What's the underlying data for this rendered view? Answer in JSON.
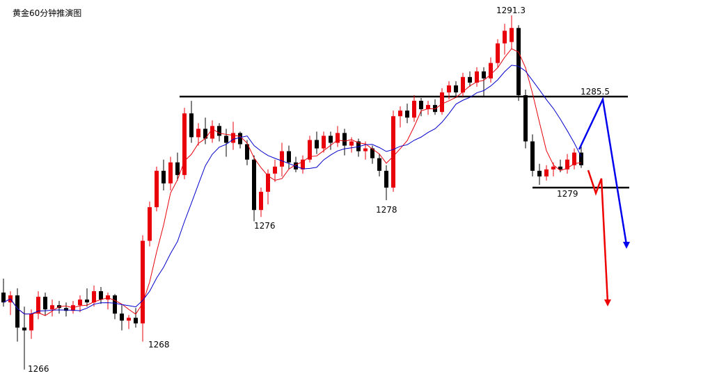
{
  "chart_data": {
    "type": "candlestick",
    "title": "黄金60分钟推演图",
    "ylim": [
      1265.4,
      1292.4
    ],
    "up_color": "#e8000b",
    "down_color": "#000000",
    "ma_colors": [
      "#e8000b",
      "#0000cc"
    ],
    "annotations": [
      1291.3,
      1285.5,
      1279,
      1278,
      1276,
      1268,
      1266
    ],
    "candles": [
      [
        1271.5,
        1272.5,
        1270.5,
        1270.8
      ],
      [
        1270.8,
        1271.6,
        1269.9,
        1271.3
      ],
      [
        1271.3,
        1271.8,
        1268,
        1269
      ],
      [
        1269,
        1270.5,
        1266,
        1268.8
      ],
      [
        1268.8,
        1270.3,
        1268.2,
        1270
      ],
      [
        1270,
        1271.6,
        1269.6,
        1271.2
      ],
      [
        1271.2,
        1271.5,
        1269.9,
        1270.3
      ],
      [
        1270.3,
        1271,
        1269.8,
        1270.6
      ],
      [
        1270.6,
        1270.9,
        1270,
        1270.4
      ],
      [
        1270.4,
        1270.8,
        1269.8,
        1270.2
      ],
      [
        1270.2,
        1270.9,
        1270,
        1270.6
      ],
      [
        1270.6,
        1271.3,
        1270.1,
        1271
      ],
      [
        1271,
        1271.8,
        1270.5,
        1270.8
      ],
      [
        1270.8,
        1272,
        1270.5,
        1271.6
      ],
      [
        1271.6,
        1271.9,
        1270.7,
        1271
      ],
      [
        1271,
        1271.5,
        1270.3,
        1271.3
      ],
      [
        1271.3,
        1271.4,
        1269.6,
        1270
      ],
      [
        1270,
        1270.6,
        1268.8,
        1269.5
      ],
      [
        1269.5,
        1269.9,
        1268.9,
        1269.7
      ],
      [
        1269.7,
        1270.4,
        1269,
        1269.3
      ],
      [
        1269.3,
        1275.6,
        1268,
        1275.2
      ],
      [
        1275.2,
        1278,
        1274.8,
        1277.6
      ],
      [
        1277.6,
        1280.5,
        1277.3,
        1280.2
      ],
      [
        1280.2,
        1281,
        1278.8,
        1279.3
      ],
      [
        1279.3,
        1281.2,
        1278.8,
        1280.8
      ],
      [
        1280.8,
        1281.5,
        1279.5,
        1279.9
      ],
      [
        1279.9,
        1284.7,
        1279.6,
        1284.3
      ],
      [
        1284.3,
        1285.2,
        1282.2,
        1282.6
      ],
      [
        1282.6,
        1283.6,
        1282,
        1283.2
      ],
      [
        1283.2,
        1284,
        1282.1,
        1282.5
      ],
      [
        1282.5,
        1283.8,
        1282.2,
        1283.4
      ],
      [
        1283.4,
        1283.6,
        1282.3,
        1282.7
      ],
      [
        1282.7,
        1283.2,
        1281.2,
        1282.2
      ],
      [
        1282.2,
        1283.7,
        1281.7,
        1282.9
      ],
      [
        1282.9,
        1283,
        1281.8,
        1282.1
      ],
      [
        1282.1,
        1282.4,
        1280.6,
        1281
      ],
      [
        1281,
        1281.3,
        1276.6,
        1277.4
      ],
      [
        1277.4,
        1279,
        1276.9,
        1278.7
      ],
      [
        1278.7,
        1280.3,
        1277.8,
        1280
      ],
      [
        1280,
        1281,
        1279.4,
        1280.5
      ],
      [
        1280.5,
        1282.2,
        1279.8,
        1281.6
      ],
      [
        1281.6,
        1282,
        1280.3,
        1280.8
      ],
      [
        1280.8,
        1281.2,
        1280.1,
        1280.3
      ],
      [
        1280.3,
        1281.3,
        1280,
        1281
      ],
      [
        1281,
        1282.7,
        1280.8,
        1282.4
      ],
      [
        1282.4,
        1283,
        1281.4,
        1281.8
      ],
      [
        1281.8,
        1283,
        1281.5,
        1282.7
      ],
      [
        1282.7,
        1283,
        1281.7,
        1282.2
      ],
      [
        1282.2,
        1283.4,
        1281.9,
        1282.9
      ],
      [
        1282.9,
        1283.2,
        1281.3,
        1282
      ],
      [
        1282,
        1282.6,
        1281.5,
        1282.3
      ],
      [
        1282.3,
        1282.5,
        1281.2,
        1281.6
      ],
      [
        1281.6,
        1282.3,
        1281,
        1281.8
      ],
      [
        1281.8,
        1282,
        1280.7,
        1281.1
      ],
      [
        1281.1,
        1281.4,
        1279.8,
        1280.2
      ],
      [
        1280.2,
        1280.6,
        1278.1,
        1279
      ],
      [
        1279,
        1284.5,
        1278.7,
        1284.1
      ],
      [
        1284.1,
        1284.8,
        1283.3,
        1284.5
      ],
      [
        1284.5,
        1285,
        1283.6,
        1284
      ],
      [
        1284,
        1285.6,
        1283.7,
        1285.2
      ],
      [
        1285.2,
        1285.4,
        1284.1,
        1284.6
      ],
      [
        1284.6,
        1285.2,
        1284.2,
        1284.9
      ],
      [
        1284.9,
        1285.3,
        1284.2,
        1284.4
      ],
      [
        1284.4,
        1286.1,
        1284.2,
        1285.8
      ],
      [
        1285.8,
        1286.6,
        1285.3,
        1286.3
      ],
      [
        1286.3,
        1286.6,
        1285.4,
        1285.8
      ],
      [
        1285.8,
        1287.2,
        1285.5,
        1286.9
      ],
      [
        1286.9,
        1287.3,
        1286.2,
        1286.5
      ],
      [
        1286.5,
        1287.6,
        1286.2,
        1287.3
      ],
      [
        1287.3,
        1287.6,
        1285.5,
        1286.8
      ],
      [
        1286.8,
        1288.3,
        1286.5,
        1287.9
      ],
      [
        1287.9,
        1289.6,
        1287.6,
        1289.3
      ],
      [
        1289.3,
        1290.7,
        1288.5,
        1290.2
      ],
      [
        1289.4,
        1291.3,
        1288.9,
        1290.4
      ],
      [
        1290.4,
        1290.6,
        1285.2,
        1285.6
      ],
      [
        1285.6,
        1286,
        1281.8,
        1282.3
      ],
      [
        1282.3,
        1282.8,
        1279.8,
        1280.2
      ],
      [
        1280.2,
        1280.7,
        1279.2,
        1279.8
      ],
      [
        1279.8,
        1280.6,
        1279.5,
        1280.3
      ],
      [
        1280.3,
        1280.8,
        1279.8,
        1280.5
      ],
      [
        1280.5,
        1281,
        1280.1,
        1280.3
      ],
      [
        1280.3,
        1281.4,
        1280,
        1281
      ],
      [
        1280.6,
        1281.8,
        1280.3,
        1281.5
      ],
      [
        1281.5,
        1282,
        1280.4,
        1280.6
      ]
    ]
  }
}
